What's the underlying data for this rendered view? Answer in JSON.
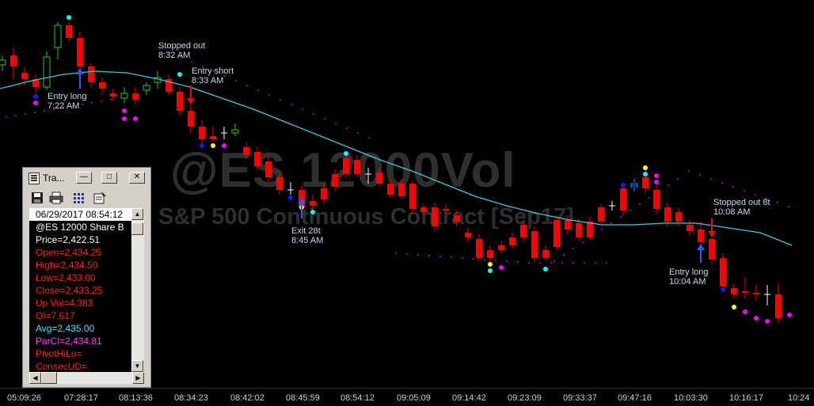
{
  "chart": {
    "watermark_symbol": "@ES 12000Vol",
    "watermark_desc": "S&P 500 Continuous Contract [Sep17]",
    "colors": {
      "up": "#22cc22",
      "down": "#ff0000",
      "avg": "#40c8d8",
      "parabolic": "#cc00cc",
      "background": "#000000"
    }
  },
  "annotations": [
    {
      "id": "entry_long_1",
      "line1": "Entry long",
      "line2": "7:22 AM"
    },
    {
      "id": "stopped_out_1",
      "line1": "Stopped out",
      "line2": "8:32 AM"
    },
    {
      "id": "entry_short",
      "line1": "Entry short",
      "line2": "8:33 AM"
    },
    {
      "id": "exit_28t",
      "line1": "Exit 28t",
      "line2": "8:45 AM"
    },
    {
      "id": "entry_long_2",
      "line1": "Entry long",
      "line2": "10:04 AM"
    },
    {
      "id": "stopped_out_2",
      "line1": "Stopped out 8t",
      "line2": "10:08 AM"
    }
  ],
  "time_axis": [
    "05:09:26",
    "07:28:17",
    "08:13:36",
    "08:34:23",
    "08:42:02",
    "08:45:59",
    "08:54:12",
    "09:05:09",
    "09:14:42",
    "09:23:09",
    "09:33:37",
    "09:47:16",
    "10:03:30",
    "10:16:17",
    "10:24"
  ],
  "tracking_window": {
    "title": "Tra...",
    "rows": [
      {
        "text": "06/29/2017 08:54:12",
        "color": "#ffffff",
        "highlight": true
      },
      {
        "text": "@ES 12000 Share B",
        "color": "#ffffff"
      },
      {
        "text": "Price=2,422.51",
        "color": "#ffffff"
      },
      {
        "text": "Open=2,434.25",
        "color": "#ff2020"
      },
      {
        "text": "High=2,434.50",
        "color": "#ff2020"
      },
      {
        "text": "Low=2,433.00",
        "color": "#ff2020"
      },
      {
        "text": "Close=2,433.25",
        "color": "#ff2020"
      },
      {
        "text": "Up Vol=4,383",
        "color": "#ff2020"
      },
      {
        "text": "OI=7,617",
        "color": "#ff2020"
      },
      {
        "text": "Avg=2,435.00",
        "color": "#40e0ff"
      },
      {
        "text": "ParCl=2,434.81",
        "color": "#ff40ff"
      },
      {
        "text": "PivotHiLo=",
        "color": "#ff2020"
      },
      {
        "text": "ConsecUD=",
        "color": "#ff2020"
      }
    ]
  },
  "icons": {
    "window": "tracking-window-icon",
    "save": "save-icon",
    "print": "print-icon",
    "grid": "grid-icon",
    "properties": "properties-icon"
  }
}
